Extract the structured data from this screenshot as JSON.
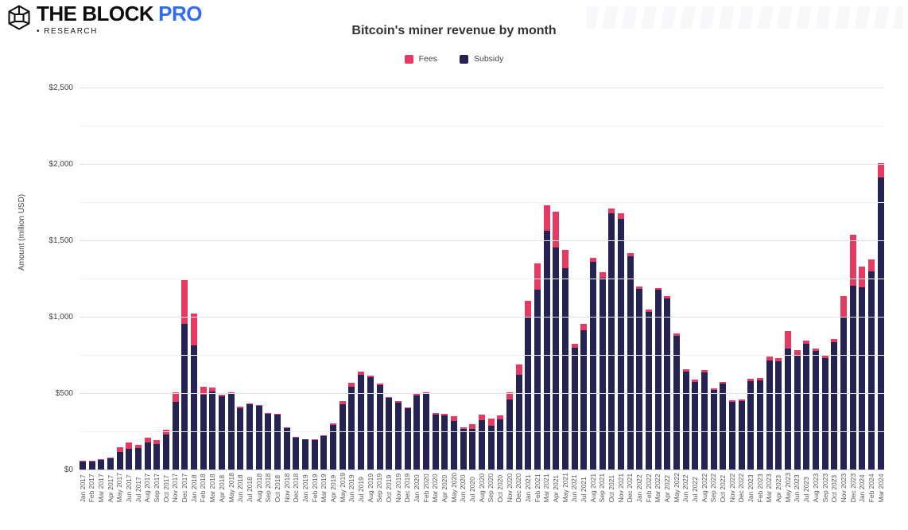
{
  "header": {
    "brand": "THE BLOCK",
    "brand_pro": "PRO",
    "research_bullet": "•",
    "research": "RESEARCH",
    "title": "Bitcoin's miner revenue by month"
  },
  "colors": {
    "fees": "#e73a63",
    "subsidy": "#262254",
    "logo_blue": "#2e6bf6",
    "grid_major": "#e3e3e3",
    "grid_minor": "#efefef"
  },
  "legend": {
    "items": [
      {
        "label": "Fees",
        "color": "#e73a63"
      },
      {
        "label": "Subsidy",
        "color": "#262254"
      }
    ]
  },
  "axes": {
    "y_title": "Amount (million USD)",
    "y_tick_labels": [
      "$0",
      "$500",
      "$1,000",
      "$1,500",
      "$2,000",
      "$2,500"
    ],
    "y_tick_values": [
      0,
      500,
      1000,
      1500,
      2000,
      2500
    ],
    "y_minor_step": 250
  },
  "chart_data": {
    "type": "bar",
    "stacked": true,
    "title": "Bitcoin's miner revenue by month",
    "xlabel": "",
    "ylabel": "Amount (million USD)",
    "ylim": [
      0,
      2500
    ],
    "grid": true,
    "legend_position": "top-center",
    "categories": [
      "Jan 2017",
      "Feb 2017",
      "Mar 2017",
      "Apr 2017",
      "May 2017",
      "Jun 2017",
      "Jul 2017",
      "Aug 2017",
      "Sep 2017",
      "Oct 2017",
      "Nov 2017",
      "Dec 2017",
      "Jan 2018",
      "Feb 2018",
      "Mar 2018",
      "Apr 2018",
      "May 2018",
      "Jun 2018",
      "Jul 2018",
      "Aug 2018",
      "Sep 2018",
      "Oct 2018",
      "Nov 2018",
      "Dec 2018",
      "Jan 2019",
      "Feb 2019",
      "Mar 2019",
      "Apr 2019",
      "May 2019",
      "Jun 2019",
      "Jul 2019",
      "Aug 2019",
      "Sep 2019",
      "Oct 2019",
      "Nov 2019",
      "Dec 2019",
      "Jan 2020",
      "Feb 2020",
      "Mar 2020",
      "Apr 2020",
      "May 2020",
      "Jun 2020",
      "Jul 2020",
      "Aug 2020",
      "Sep 2020",
      "Oct 2020",
      "Nov 2020",
      "Dec 2020",
      "Jan 2021",
      "Feb 2021",
      "Mar 2021",
      "Apr 2021",
      "May 2021",
      "Jun 2021",
      "Jul 2021",
      "Aug 2021",
      "Sep 2021",
      "Oct 2021",
      "Nov 2021",
      "Dec 2021",
      "Jan 2022",
      "Feb 2022",
      "Mar 2022",
      "Apr 2022",
      "May 2022",
      "Jun 2022",
      "Jul 2022",
      "Aug 2022",
      "Sep 2022",
      "Oct 2022",
      "Nov 2022",
      "Dec 2022",
      "Jan 2023",
      "Feb 2023",
      "Mar 2023",
      "Apr 2023",
      "May 2023",
      "Jun 2023",
      "Jul 2023",
      "Aug 2023",
      "Sep 2023",
      "Oct 2023",
      "Nov 2023",
      "Dec 2023",
      "Jan 2024",
      "Feb 2024",
      "Mar 2024"
    ],
    "series": [
      {
        "name": "Subsidy",
        "color": "#262254",
        "values": [
          52,
          54,
          63,
          71,
          116,
          138,
          143,
          177,
          165,
          230,
          443,
          955,
          815,
          490,
          513,
          477,
          494,
          402,
          425,
          416,
          367,
          360,
          271,
          210,
          196,
          192,
          220,
          291,
          428,
          540,
          618,
          603,
          553,
          467,
          440,
          401,
          487,
          496,
          360,
          354,
          319,
          266,
          267,
          324,
          285,
          326,
          458,
          618,
          993,
          1178,
          1563,
          1452,
          1316,
          799,
          913,
          1358,
          1257,
          1676,
          1642,
          1394,
          1182,
          1030,
          1175,
          1119,
          877,
          642,
          575,
          638,
          520,
          564,
          443,
          448,
          578,
          585,
          715,
          708,
          790,
          750,
          824,
          775,
          729,
          834,
          996,
          1201,
          1193,
          1296,
          1910
        ]
      },
      {
        "name": "Fees",
        "color": "#e73a63",
        "values": [
          3,
          3,
          4,
          5,
          30,
          38,
          21,
          33,
          28,
          32,
          62,
          285,
          205,
          50,
          22,
          13,
          11,
          8,
          7,
          6,
          5,
          5,
          5,
          4,
          4,
          4,
          5,
          9,
          22,
          30,
          22,
          12,
          9,
          8,
          8,
          7,
          7,
          9,
          12,
          11,
          31,
          9,
          28,
          38,
          50,
          29,
          48,
          69,
          112,
          172,
          167,
          238,
          124,
          26,
          40,
          27,
          33,
          34,
          33,
          21,
          18,
          15,
          15,
          14,
          14,
          12,
          12,
          11,
          12,
          11,
          12,
          10,
          14,
          16,
          25,
          22,
          115,
          31,
          21,
          15,
          14,
          21,
          142,
          335,
          134,
          77,
          95
        ]
      }
    ]
  }
}
